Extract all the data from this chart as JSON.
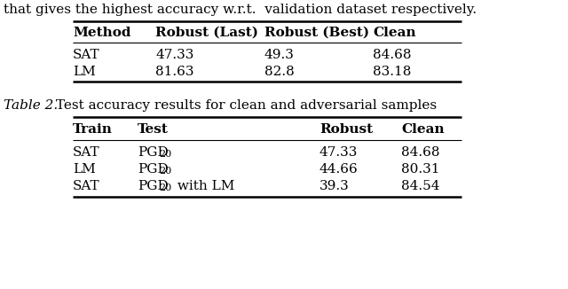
{
  "top_text": "that gives the highest accuracy w.r.t.  validation dataset respectively.",
  "table1": {
    "headers": [
      "Method",
      "Robust (Last)",
      "Robust (Best)",
      "Clean"
    ],
    "rows": [
      [
        "SAT",
        "47.33",
        "49.3",
        "84.68"
      ],
      [
        "LM",
        "81.63",
        "82.8",
        "83.18"
      ]
    ]
  },
  "caption2_italic": "Table 2.",
  "caption2_rest": " Test accuracy results for clean and adversarial samples",
  "table2": {
    "headers": [
      "Train",
      "Test",
      "Robust",
      "Clean"
    ],
    "rows": [
      [
        "SAT",
        "PGD20",
        "47.33",
        "84.68"
      ],
      [
        "LM",
        "PGD20",
        "44.66",
        "80.31"
      ],
      [
        "SAT",
        "PGD20withLM",
        "39.3",
        "84.54"
      ]
    ]
  },
  "bg_color": "#ffffff",
  "text_color": "#000000"
}
